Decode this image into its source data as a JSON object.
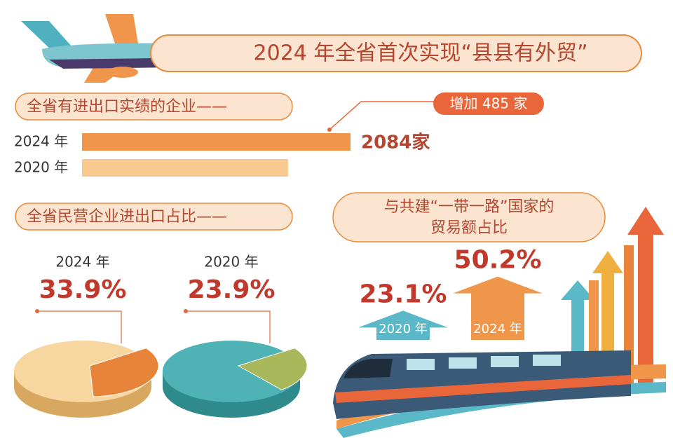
{
  "title": "2024 年全省首次实现“县县有外贸”",
  "chart_data": [
    {
      "type": "bar",
      "title": "全省有进出口实绩的企业——",
      "categories": [
        "2024 年",
        "2020 年"
      ],
      "values": [
        2084,
        1599
      ],
      "value_labels": [
        "2084家",
        null
      ],
      "color": "#f0964a",
      "annotation": "增加 485 家"
    },
    {
      "type": "pie",
      "title": "全省民营企业进出口占比——",
      "subtitle": "2024 年",
      "values": [
        33.9
      ],
      "value_labels": [
        "33.9%"
      ],
      "color": "#e8843a"
    },
    {
      "type": "pie",
      "subtitle": "2020 年",
      "values": [
        23.9
      ],
      "value_labels": [
        "23.9%"
      ],
      "color": "#a9b85a"
    },
    {
      "type": "arrow",
      "title": "与共建“一带一路”国家的贸易额占比",
      "categories": [
        "2020 年",
        "2024 年"
      ],
      "values": [
        23.1,
        50.2
      ],
      "value_labels": [
        "23.1%",
        "50.2%"
      ],
      "colors": [
        "#5bb8c8",
        "#f0964a"
      ]
    }
  ]
}
